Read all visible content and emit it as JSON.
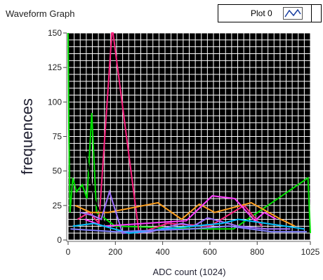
{
  "window": {
    "title": "Waveform Graph"
  },
  "legend": {
    "label": "Plot 0",
    "icon": "line-plot-icon"
  },
  "chart_data": {
    "type": "line",
    "title": "Waveform Graph",
    "xlabel": "ADC count (1024)",
    "ylabel": "frequences",
    "xlim": [
      0,
      1025
    ],
    "ylim": [
      0,
      150
    ],
    "xticks": [
      0,
      200,
      400,
      600,
      800,
      1025
    ],
    "yticks": [
      0,
      25,
      50,
      75,
      100,
      125,
      150
    ],
    "grid": true,
    "background": "#000000",
    "grid_color": "#ffffff",
    "legend_position": "top-right",
    "series": [
      {
        "color": "#00e000",
        "points": [
          [
            0,
            150
          ],
          [
            3,
            80
          ],
          [
            8,
            20
          ],
          [
            20,
            45
          ],
          [
            35,
            35
          ],
          [
            60,
            40
          ],
          [
            80,
            30
          ],
          [
            100,
            92
          ],
          [
            120,
            20
          ],
          [
            200,
            10
          ],
          [
            580,
            8
          ],
          [
            700,
            8
          ],
          [
            1015,
            45
          ],
          [
            1025,
            5
          ]
        ]
      },
      {
        "color": "#ff2080",
        "points": [
          [
            40,
            15
          ],
          [
            90,
            20
          ],
          [
            130,
            12
          ],
          [
            185,
            150
          ],
          [
            190,
            150
          ],
          [
            300,
            5
          ],
          [
            420,
            12
          ],
          [
            600,
            10
          ],
          [
            745,
            25
          ],
          [
            820,
            10
          ]
        ]
      },
      {
        "color": "#000000",
        "points": [
          [
            75,
            64
          ],
          [
            90,
            50
          ],
          [
            110,
            30
          ],
          [
            160,
            10
          ]
        ]
      },
      {
        "color": "#ffa020",
        "points": [
          [
            30,
            25
          ],
          [
            95,
            20
          ],
          [
            170,
            20
          ],
          [
            380,
            27
          ],
          [
            480,
            15
          ],
          [
            555,
            26
          ],
          [
            620,
            20
          ],
          [
            775,
            27
          ],
          [
            900,
            15
          ],
          [
            960,
            10
          ]
        ]
      },
      {
        "color": "#a070ff",
        "points": [
          [
            50,
            20
          ],
          [
            100,
            18
          ],
          [
            140,
            15
          ],
          [
            175,
            35
          ],
          [
            230,
            5
          ],
          [
            350,
            6
          ],
          [
            480,
            12
          ],
          [
            530,
            10
          ],
          [
            590,
            16
          ],
          [
            720,
            10
          ],
          [
            840,
            8
          ],
          [
            940,
            8
          ]
        ]
      },
      {
        "color": "#ff40ff",
        "points": [
          [
            70,
            15
          ],
          [
            150,
            10
          ],
          [
            500,
            14
          ],
          [
            610,
            32
          ],
          [
            705,
            30
          ],
          [
            790,
            14
          ],
          [
            830,
            20
          ],
          [
            880,
            15
          ]
        ]
      },
      {
        "color": "#00c0ff",
        "points": [
          [
            20,
            10
          ],
          [
            110,
            12
          ],
          [
            260,
            5
          ],
          [
            400,
            8
          ],
          [
            650,
            12
          ],
          [
            720,
            15
          ],
          [
            1000,
            8
          ]
        ]
      },
      {
        "color": "#8080ff",
        "points": [
          [
            10,
            8
          ],
          [
            200,
            6
          ],
          [
            520,
            8
          ],
          [
            680,
            10
          ],
          [
            860,
            6
          ],
          [
            1010,
            6
          ]
        ]
      }
    ]
  }
}
